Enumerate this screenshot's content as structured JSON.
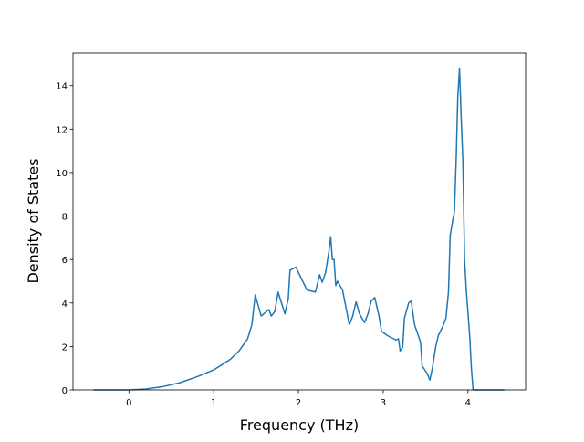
{
  "chart_data": {
    "type": "line",
    "x_label": "Frequency (THz)",
    "y_label": "Density of States",
    "x": [
      -0.42,
      0,
      0.2,
      0.4,
      0.6,
      0.8,
      1.0,
      1.2,
      1.3,
      1.4,
      1.45,
      1.47,
      1.49,
      1.56,
      1.65,
      1.68,
      1.72,
      1.76,
      1.8,
      1.84,
      1.88,
      1.9,
      1.97,
      2.0,
      2.1,
      2.2,
      2.25,
      2.28,
      2.32,
      2.36,
      2.38,
      2.4,
      2.42,
      2.44,
      2.46,
      2.52,
      2.6,
      2.64,
      2.68,
      2.72,
      2.78,
      2.82,
      2.86,
      2.9,
      2.95,
      2.98,
      3.05,
      3.15,
      3.18,
      3.2,
      3.23,
      3.25,
      3.3,
      3.33,
      3.37,
      3.44,
      3.46,
      3.52,
      3.55,
      3.58,
      3.62,
      3.65,
      3.7,
      3.74,
      3.77,
      3.79,
      3.82,
      3.84,
      3.86,
      3.88,
      3.9,
      3.92,
      3.94,
      3.96,
      3.98,
      4.02,
      4.04,
      4.06,
      4.43
    ],
    "series": [
      {
        "color": "#1f77b4",
        "values": [
          0,
          0,
          0.04,
          0.15,
          0.33,
          0.6,
          0.92,
          1.42,
          1.8,
          2.35,
          3.0,
          3.7,
          4.37,
          3.4,
          3.7,
          3.4,
          3.6,
          4.5,
          4.0,
          3.5,
          4.2,
          5.5,
          5.65,
          5.4,
          4.6,
          4.5,
          5.3,
          4.95,
          5.4,
          6.4,
          7.05,
          6.0,
          6.0,
          4.8,
          5.0,
          4.6,
          3.0,
          3.4,
          4.05,
          3.5,
          3.1,
          3.5,
          4.1,
          4.25,
          3.4,
          2.7,
          2.5,
          2.3,
          2.35,
          1.8,
          1.95,
          3.3,
          4.0,
          4.1,
          3.0,
          2.2,
          1.1,
          0.75,
          0.45,
          1.0,
          2.0,
          2.5,
          2.9,
          3.3,
          4.5,
          7.1,
          7.8,
          8.2,
          10.5,
          13.5,
          14.8,
          12.5,
          10.5,
          6.0,
          4.6,
          2.5,
          1.0,
          0,
          0
        ]
      }
    ],
    "xlim": [
      -0.66,
      4.68
    ],
    "ylim": [
      0,
      15.5
    ],
    "xticks": [
      0,
      1,
      2,
      3,
      4
    ],
    "yticks": [
      0,
      2,
      4,
      6,
      8,
      10,
      12,
      14
    ]
  }
}
